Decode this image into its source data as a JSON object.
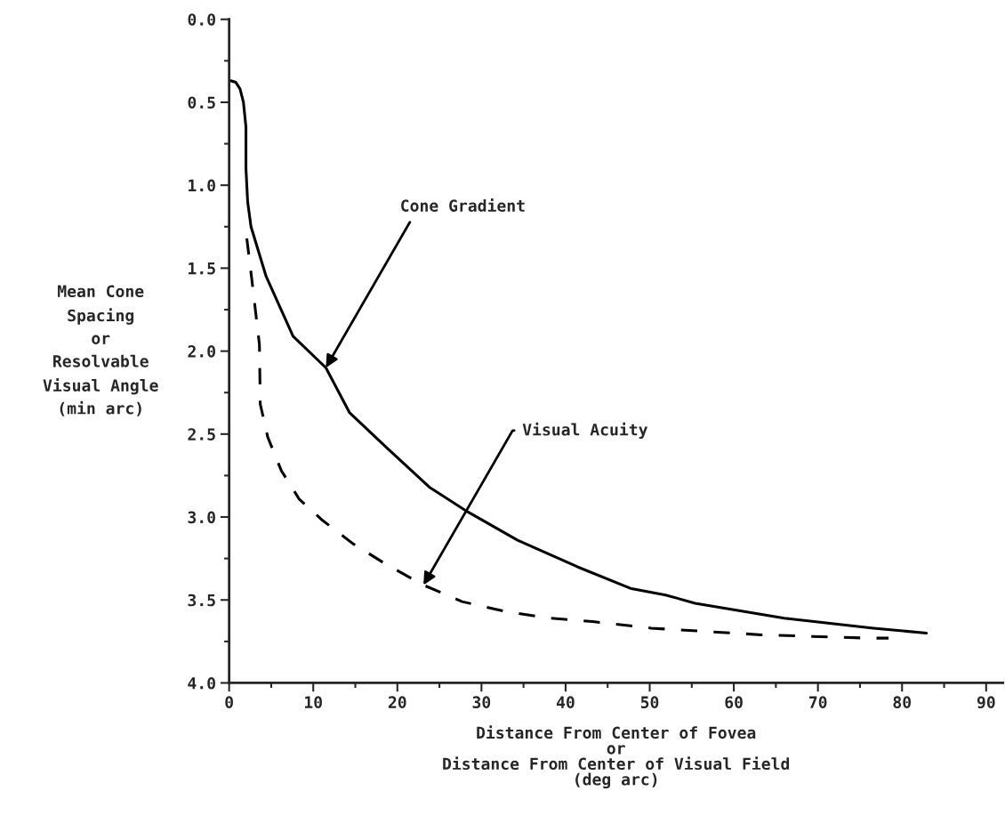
{
  "chart_data": {
    "type": "line",
    "xlabel": "Distance From Center of Fovea\nor\nDistance From Center of Visual Field\n(deg arc)",
    "ylabel": "Mean Cone\nSpacing\nor\nResolvable\nVisual Angle\n(min arc)",
    "series": [
      {
        "color": "#000000",
        "line_style": "solid",
        "x": [
          0.2,
          0.8,
          1.3,
          1.7,
          2.0,
          2.0,
          2.2,
          2.6,
          4.4,
          7.6,
          11.5,
          14.3,
          18.9,
          23.8,
          28.4,
          34.3,
          41.4,
          47.7,
          51.9,
          55.4,
          66,
          76.6,
          82.9
        ],
        "values": [
          0.37,
          0.38,
          0.42,
          0.5,
          0.65,
          0.9,
          1.1,
          1.25,
          1.55,
          1.91,
          2.1,
          2.37,
          2.59,
          2.82,
          2.97,
          3.14,
          3.3,
          3.43,
          3.47,
          3.52,
          3.61,
          3.67,
          3.7
        ]
      },
      {
        "color": "#000000",
        "line_style": "dashed",
        "x": [
          2.1,
          2.7,
          3.6,
          3.7,
          4.6,
          6.2,
          8.3,
          11.1,
          14.7,
          18.5,
          23.1,
          27.7,
          32.9,
          38.2,
          43.2,
          50.2,
          63.3,
          75.9,
          78.4
        ],
        "values": [
          1.32,
          1.57,
          1.96,
          2.32,
          2.52,
          2.72,
          2.89,
          3.02,
          3.16,
          3.28,
          3.41,
          3.51,
          3.57,
          3.61,
          3.63,
          3.67,
          3.71,
          3.73,
          3.73
        ]
      }
    ],
    "annotations": [
      {
        "text": "Cone Gradient",
        "x": 11.5,
        "y": 2.1
      },
      {
        "text": "Visual Acuity",
        "x": 23.1,
        "y": 3.41
      }
    ],
    "xlim": [
      0,
      92
    ],
    "ylim": [
      4.0,
      0.0
    ],
    "xticks": [
      0,
      10,
      20,
      30,
      40,
      50,
      60,
      70,
      80,
      90,
      {
        "value": 5,
        "label": null
      },
      {
        "value": 15,
        "label": null
      },
      {
        "value": 25,
        "label": null
      },
      {
        "value": 35,
        "label": null
      },
      {
        "value": 45,
        "label": null
      },
      {
        "value": 55,
        "label": null
      },
      {
        "value": 65,
        "label": null
      },
      {
        "value": 75,
        "label": null
      },
      {
        "value": 85,
        "label": null
      }
    ],
    "yticks": [
      {
        "value": 0.0,
        "label": "0.0"
      },
      {
        "value": 0.5,
        "label": "0.5"
      },
      {
        "value": 1.0,
        "label": "1.0"
      },
      {
        "value": 1.5,
        "label": "1.5"
      },
      {
        "value": 2.0,
        "label": "2.0"
      },
      {
        "value": 2.5,
        "label": "2.5"
      },
      {
        "value": 3.0,
        "label": "3.0"
      },
      {
        "value": 3.5,
        "label": "3.5"
      },
      {
        "value": 4.0,
        "label": "4.0"
      },
      {
        "value": 0.25,
        "label": null
      },
      {
        "value": 0.75,
        "label": null
      },
      {
        "value": 1.25,
        "label": null
      },
      {
        "value": 1.75,
        "label": null
      },
      {
        "value": 2.25,
        "label": null
      },
      {
        "value": 2.75,
        "label": null
      },
      {
        "value": 3.25,
        "label": null
      },
      {
        "value": 3.75,
        "label": null
      }
    ],
    "grid": false,
    "legend": false,
    "marker": "none"
  }
}
